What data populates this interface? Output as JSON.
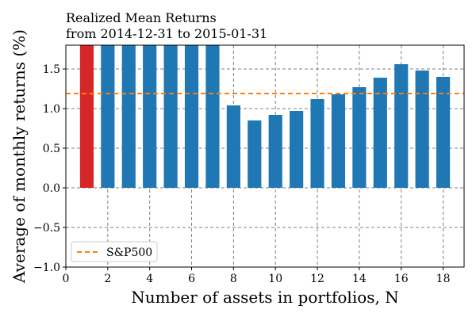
{
  "chart_data": {
    "type": "bar",
    "title_line1": "Realized Mean Returns",
    "title_line2": "from 2014-12-31 to 2015-01-31",
    "xlabel": "Number of assets in portfolios, N",
    "ylabel": "Average of monthly returns (%)",
    "xlim": [
      0,
      19
    ],
    "ylim": [
      -1.0,
      1.8
    ],
    "xticks": [
      0,
      2,
      4,
      6,
      8,
      10,
      12,
      14,
      16,
      18
    ],
    "xtick_labels": [
      "0",
      "2",
      "4",
      "6",
      "8",
      "10",
      "12",
      "14",
      "16",
      "18"
    ],
    "yticks": [
      -1.0,
      -0.5,
      0.0,
      0.5,
      1.0,
      1.5
    ],
    "ytick_labels": [
      "−1.0",
      "−0.5",
      "0.0",
      "0.5",
      "1.0",
      "1.5"
    ],
    "grid": true,
    "bar_color": "#1f77b4",
    "highlight_color": "#d62728",
    "highlight_index": 0,
    "x": [
      1,
      2,
      3,
      4,
      5,
      6,
      7,
      8,
      9,
      10,
      11,
      12,
      13,
      14,
      15,
      16,
      17,
      18
    ],
    "values": [
      1.85,
      1.85,
      1.85,
      1.85,
      1.85,
      1.85,
      1.85,
      1.04,
      0.85,
      0.92,
      0.97,
      1.12,
      1.18,
      1.27,
      1.39,
      1.56,
      1.48,
      1.4
    ],
    "reference_line": {
      "name": "S&P500",
      "value": 1.19,
      "color": "#ff7f0e"
    },
    "legend_position": "lower-left"
  }
}
